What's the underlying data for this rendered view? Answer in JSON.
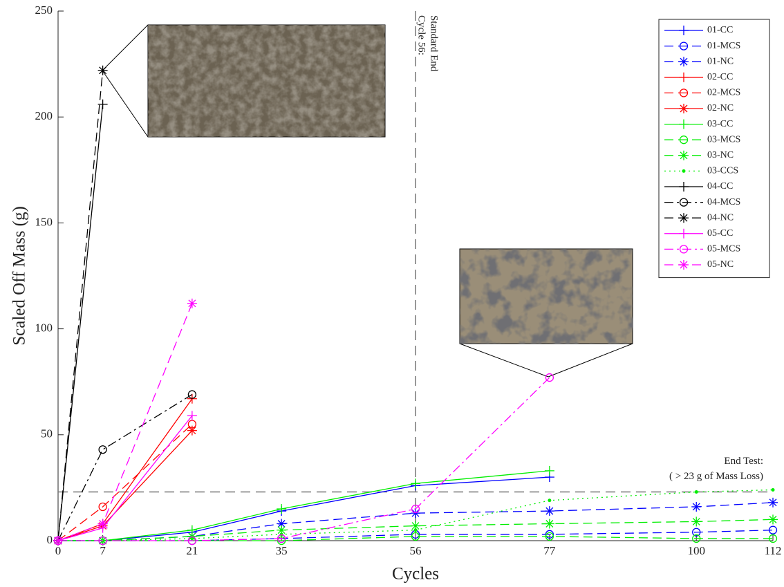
{
  "chart_data": {
    "type": "line",
    "xlabel": "Cycles",
    "ylabel": "Scaled Off Mass (g)",
    "xlim": [
      0,
      112
    ],
    "ylim": [
      0,
      250
    ],
    "xticks": [
      0,
      7,
      21,
      35,
      56,
      77,
      100,
      112
    ],
    "yticks": [
      0,
      50,
      100,
      150,
      200,
      250
    ],
    "grid": false,
    "legend": "top-right",
    "threshold_x": 56,
    "threshold_y": 23,
    "annotations": [
      "Cycle 56:",
      "Standard End",
      "End Test:",
      "( > 23 g of Mass Loss)"
    ],
    "series": [
      {
        "name": "01-CC",
        "color": "#0000ff",
        "line_style": "solid",
        "marker": "plus",
        "x": [
          0,
          7,
          21,
          35,
          56,
          77
        ],
        "values": [
          0,
          0,
          4,
          14,
          26,
          30
        ]
      },
      {
        "name": "01-MCS",
        "color": "#0000ff",
        "line_style": "dashed",
        "marker": "circle",
        "x": [
          0,
          7,
          21,
          35,
          56,
          77,
          100,
          112
        ],
        "values": [
          0,
          0,
          0,
          1,
          3,
          3,
          4,
          5
        ]
      },
      {
        "name": "01-NC",
        "color": "#0000ff",
        "line_style": "dashed",
        "marker": "star",
        "x": [
          0,
          7,
          21,
          35,
          56,
          77,
          100,
          112
        ],
        "values": [
          0,
          0,
          2,
          8,
          13,
          14,
          16,
          18
        ]
      },
      {
        "name": "02-CC",
        "color": "#ff0000",
        "line_style": "solid",
        "marker": "plus",
        "x": [
          0,
          7,
          21
        ],
        "values": [
          0,
          8,
          67
        ]
      },
      {
        "name": "02-MCS",
        "color": "#ff0000",
        "line_style": "dashed",
        "marker": "circle",
        "x": [
          0,
          7,
          21
        ],
        "values": [
          0,
          16,
          55
        ]
      },
      {
        "name": "02-NC",
        "color": "#ff0000",
        "line_style": "solid",
        "marker": "star",
        "x": [
          0,
          7,
          21
        ],
        "values": [
          0,
          7,
          52
        ]
      },
      {
        "name": "03-CC",
        "color": "#00ee00",
        "line_style": "solid",
        "marker": "plus",
        "x": [
          0,
          7,
          21,
          35,
          56,
          77
        ],
        "values": [
          0,
          0,
          5,
          15,
          27,
          33
        ]
      },
      {
        "name": "03-MCS",
        "color": "#00ee00",
        "line_style": "dashed",
        "marker": "circle",
        "x": [
          0,
          7,
          21,
          35,
          56,
          77,
          100,
          112
        ],
        "values": [
          0,
          0,
          0,
          0,
          2,
          2,
          1,
          1
        ]
      },
      {
        "name": "03-NC",
        "color": "#00ee00",
        "line_style": "dashed",
        "marker": "star",
        "x": [
          0,
          7,
          21,
          35,
          56,
          77,
          100,
          112
        ],
        "values": [
          0,
          0,
          2,
          5,
          7,
          8,
          9,
          10
        ]
      },
      {
        "name": "03-CCS",
        "color": "#00ee00",
        "line_style": "dotted",
        "marker": "dot",
        "x": [
          0,
          7,
          21,
          35,
          56,
          77,
          100,
          112
        ],
        "values": [
          0,
          0,
          1,
          3,
          5,
          19,
          23,
          24
        ]
      },
      {
        "name": "04-CC",
        "color": "#000000",
        "line_style": "solid",
        "marker": "plus",
        "x": [
          0,
          7
        ],
        "values": [
          0,
          206
        ]
      },
      {
        "name": "04-MCS",
        "color": "#000000",
        "line_style": "dashdot",
        "marker": "circle",
        "x": [
          0,
          7,
          21
        ],
        "values": [
          0,
          43,
          69
        ]
      },
      {
        "name": "04-NC",
        "color": "#000000",
        "line_style": "dashed",
        "marker": "star",
        "x": [
          0,
          7
        ],
        "values": [
          0,
          222
        ]
      },
      {
        "name": "05-CC",
        "color": "#ff00ff",
        "line_style": "solid",
        "marker": "plus",
        "x": [
          0,
          7,
          21
        ],
        "values": [
          0,
          6,
          59
        ]
      },
      {
        "name": "05-MCS",
        "color": "#ff00ff",
        "line_style": "dashdot",
        "marker": "circle",
        "x": [
          0,
          7,
          21,
          35,
          56,
          77
        ],
        "values": [
          0,
          0,
          0,
          1,
          15,
          77
        ]
      },
      {
        "name": "05-NC",
        "color": "#ff00ff",
        "line_style": "dashed",
        "marker": "star",
        "x": [
          0,
          7,
          21
        ],
        "values": [
          0,
          8,
          112
        ]
      }
    ]
  }
}
